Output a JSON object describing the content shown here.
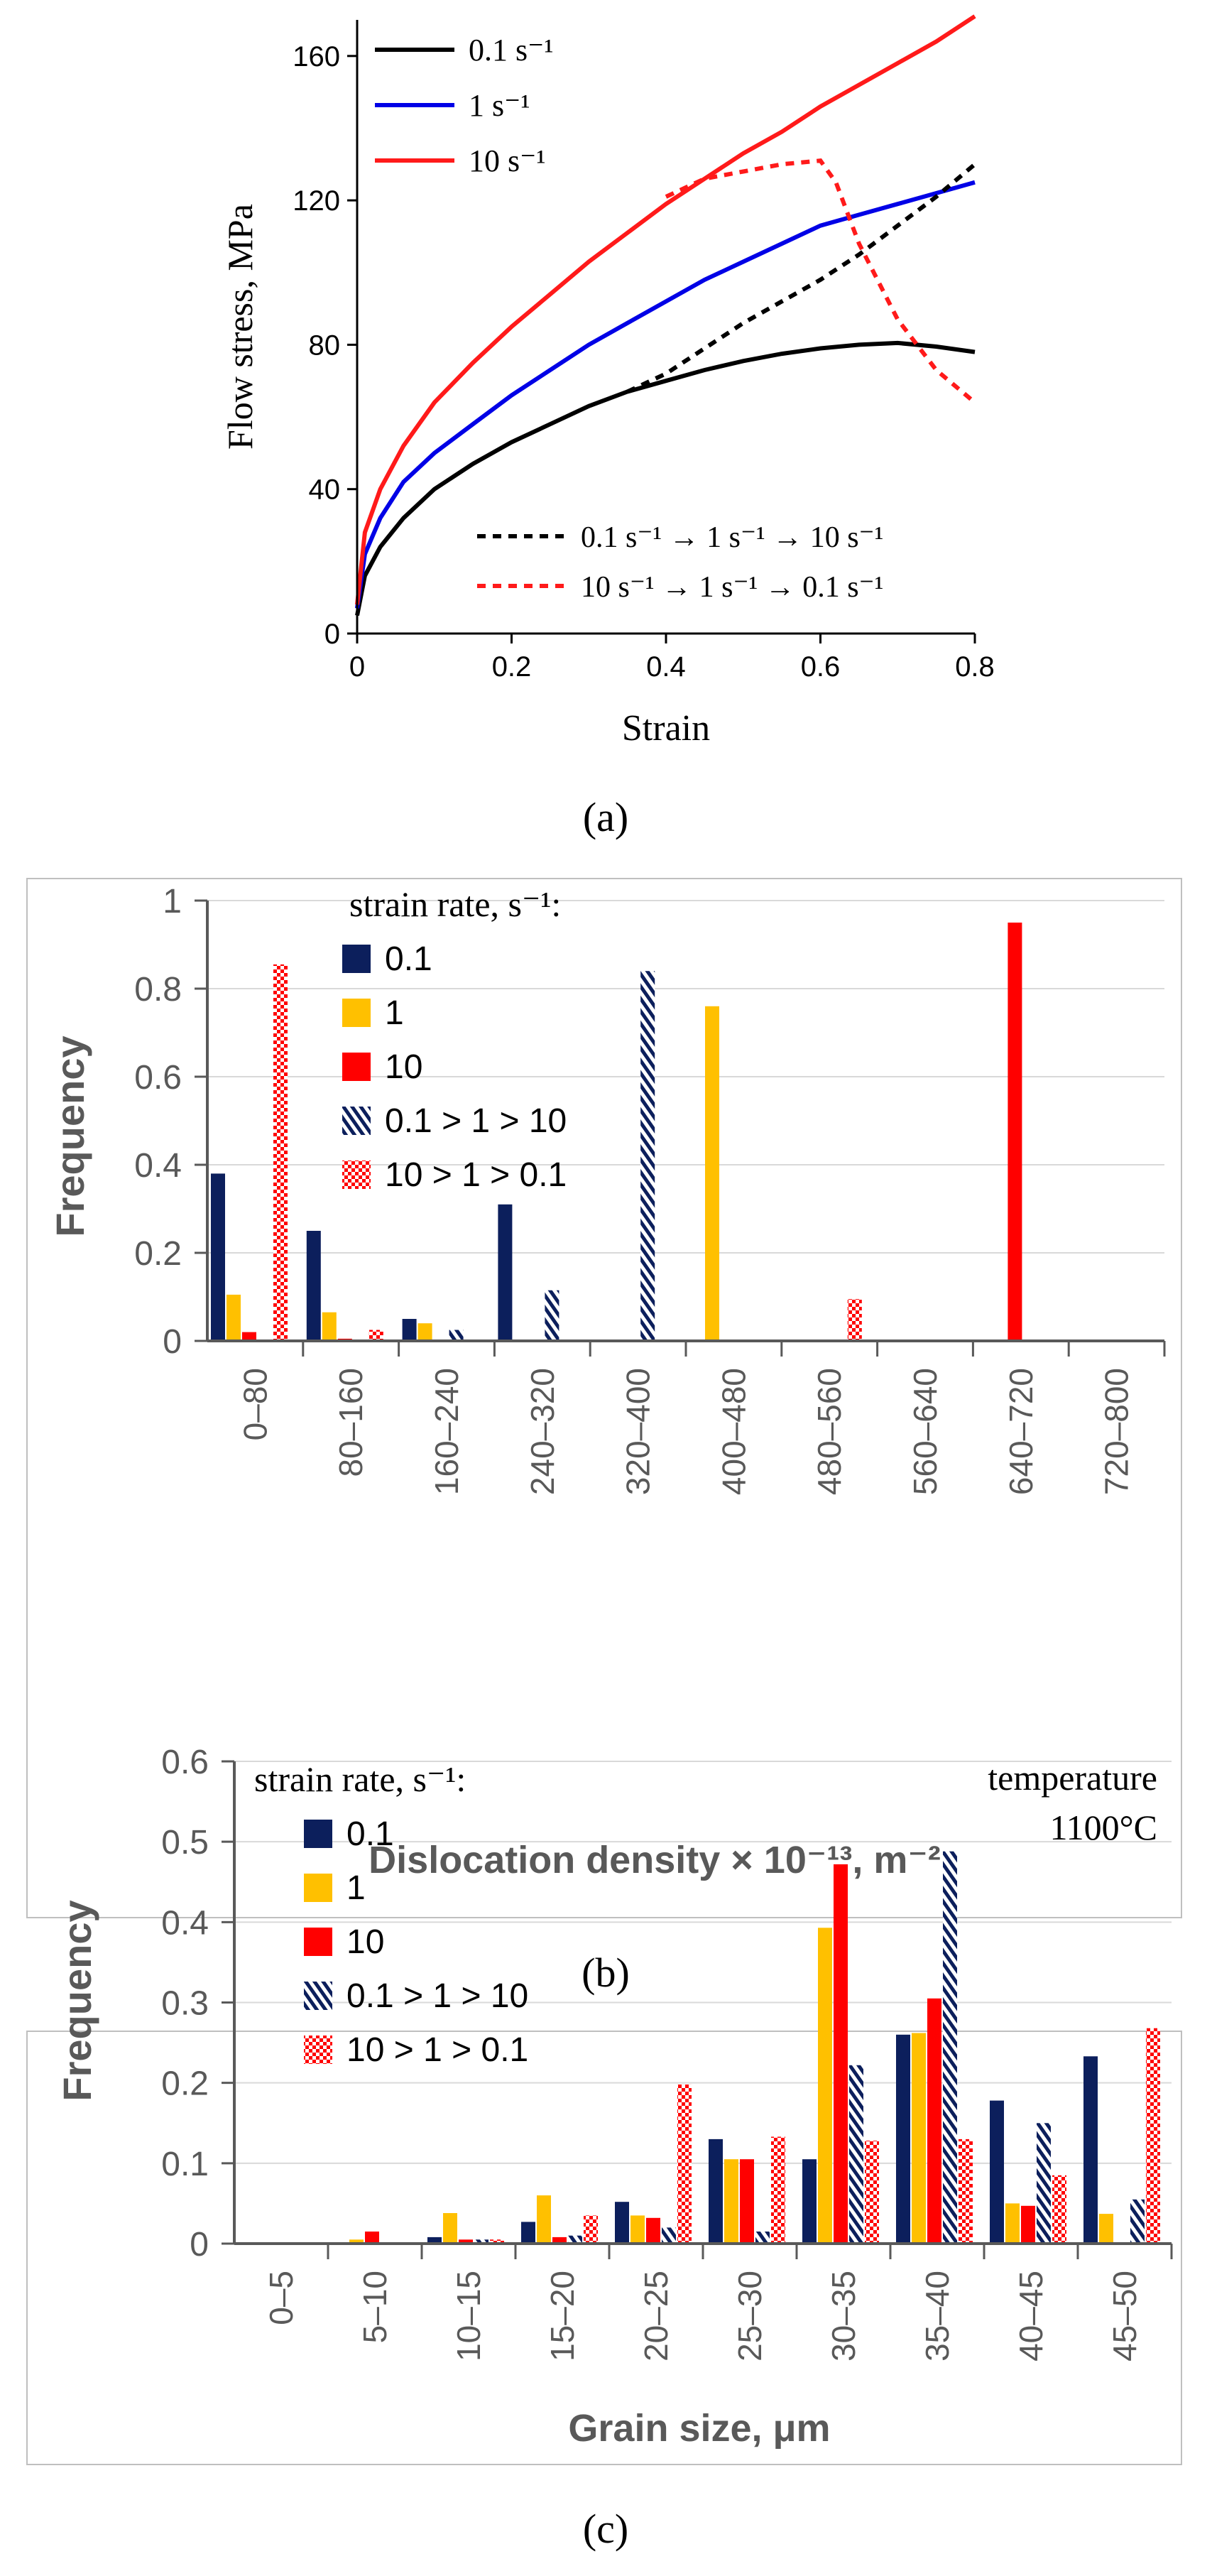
{
  "panel_labels": {
    "a": "(a)",
    "b": "(b)",
    "c": "(c)"
  },
  "colors": {
    "black": "#000000",
    "blue": "#0000e6",
    "red": "#ff1a1a",
    "navy": "#0c1f5c",
    "gold": "#ffc000",
    "bred": "#ff0000",
    "grid": "#d9d9d9",
    "tick": "#595959",
    "frame": "#bfbfbf"
  },
  "chart_data": [
    {
      "id": "a",
      "type": "line",
      "xlabel": "Strain",
      "ylabel": "Flow stress, MPa",
      "xlim": [
        0,
        0.8
      ],
      "ylim": [
        0,
        170
      ],
      "xticks": [
        "0",
        "0.2",
        "0.4",
        "0.6",
        "0.8"
      ],
      "yticks": [
        "0",
        "40",
        "80",
        "120",
        "160"
      ],
      "series": [
        {
          "name": "0.1 s⁻¹",
          "color": "#000000",
          "dash": false,
          "x": [
            0,
            0.01,
            0.03,
            0.06,
            0.1,
            0.15,
            0.2,
            0.25,
            0.3,
            0.35,
            0.4,
            0.45,
            0.5,
            0.55,
            0.6,
            0.65,
            0.7,
            0.75,
            0.8
          ],
          "y": [
            5,
            16,
            24,
            32,
            40,
            47,
            53,
            58,
            63,
            67,
            70,
            73,
            75.5,
            77.5,
            79,
            80,
            80.5,
            79.5,
            78
          ]
        },
        {
          "name": "1 s⁻¹",
          "color": "#0000e6",
          "dash": false,
          "x": [
            0,
            0.01,
            0.03,
            0.06,
            0.1,
            0.15,
            0.2,
            0.25,
            0.3,
            0.35,
            0.4,
            0.45,
            0.5,
            0.55,
            0.6,
            0.65,
            0.7,
            0.75,
            0.8
          ],
          "y": [
            7,
            22,
            32,
            42,
            50,
            58,
            66,
            73,
            80,
            86,
            92,
            98,
            103,
            108,
            113,
            116,
            119,
            122,
            125
          ]
        },
        {
          "name": "10 s⁻¹",
          "color": "#ff1a1a",
          "dash": false,
          "x": [
            0,
            0.01,
            0.03,
            0.06,
            0.1,
            0.15,
            0.2,
            0.25,
            0.3,
            0.35,
            0.4,
            0.45,
            0.5,
            0.55,
            0.6,
            0.65,
            0.7,
            0.75,
            0.8
          ],
          "y": [
            8,
            28,
            40,
            52,
            64,
            75,
            85,
            94,
            103,
            111,
            119,
            126,
            133,
            139,
            146,
            152,
            158,
            164,
            171
          ]
        },
        {
          "name": "0.1 s⁻¹ → 1 s⁻¹ → 10 s⁻¹",
          "color": "#000000",
          "dash": true,
          "x": [
            0.35,
            0.4,
            0.45,
            0.5,
            0.55,
            0.6,
            0.65,
            0.7,
            0.75,
            0.8
          ],
          "y": [
            67,
            72,
            79,
            86,
            92,
            98,
            105,
            113,
            121,
            130
          ]
        },
        {
          "name": "10 s⁻¹ → 1 s⁻¹ → 0.1 s⁻¹",
          "color": "#ff1a1a",
          "dash": true,
          "x": [
            0.4,
            0.45,
            0.5,
            0.55,
            0.6,
            0.62,
            0.65,
            0.7,
            0.75,
            0.8
          ],
          "y": [
            121,
            126,
            128,
            130,
            131,
            125,
            108,
            87,
            73,
            64
          ]
        }
      ]
    },
    {
      "id": "b",
      "type": "bar",
      "xlabel": "Dislocation density × 10⁻¹³, m⁻²",
      "ylabel": "Frequency",
      "ylim": [
        0,
        1
      ],
      "yticks": [
        "0",
        "0.2",
        "0.4",
        "0.6",
        "0.8",
        "1"
      ],
      "legend_title": "strain rate, s⁻¹:",
      "categories": [
        "0–80",
        "80–160",
        "160–240",
        "240–320",
        "320–400",
        "400–480",
        "480–560",
        "560–640",
        "640–720",
        "720–800"
      ],
      "series": [
        {
          "name": "0.1",
          "style": "navy",
          "values": [
            0.38,
            0.25,
            0.05,
            0.31,
            0,
            0,
            0,
            0,
            0,
            0
          ]
        },
        {
          "name": "1",
          "style": "gold",
          "values": [
            0.105,
            0.065,
            0.04,
            0,
            0,
            0.76,
            0,
            0,
            0,
            0
          ]
        },
        {
          "name": "10",
          "style": "red",
          "values": [
            0.02,
            0.005,
            0,
            0,
            0,
            0,
            0,
            0,
            0.95,
            0
          ]
        },
        {
          "name": "0.1 > 1 > 10",
          "style": "hatch",
          "values": [
            0,
            0,
            0.025,
            0.115,
            0.84,
            0,
            0,
            0,
            0,
            0
          ]
        },
        {
          "name": "10 > 1 > 0.1",
          "style": "check",
          "values": [
            0.855,
            0.025,
            0,
            0,
            0,
            0,
            0.095,
            0,
            0,
            0
          ]
        }
      ]
    },
    {
      "id": "c",
      "type": "bar",
      "xlabel": "Grain size, μm",
      "ylabel": "Frequency",
      "ylim": [
        0,
        0.6
      ],
      "yticks": [
        "0",
        "0.1",
        "0.2",
        "0.3",
        "0.4",
        "0.5",
        "0.6"
      ],
      "legend_title": "strain rate, s⁻¹:",
      "annotation": [
        "temperature",
        "1100°C"
      ],
      "categories": [
        "0–5",
        "5–10",
        "10–15",
        "15–20",
        "20–25",
        "25–30",
        "30–35",
        "35–40",
        "40–45",
        "45–50"
      ],
      "series": [
        {
          "name": "0.1",
          "style": "navy",
          "values": [
            0,
            0,
            0.008,
            0.027,
            0.052,
            0.13,
            0.105,
            0.26,
            0.178,
            0.233
          ]
        },
        {
          "name": "1",
          "style": "gold",
          "values": [
            0,
            0.005,
            0.038,
            0.06,
            0.035,
            0.105,
            0.393,
            0.262,
            0.05,
            0.037
          ]
        },
        {
          "name": "10",
          "style": "red",
          "values": [
            0,
            0.015,
            0.005,
            0.008,
            0.032,
            0.105,
            0.472,
            0.305,
            0.047,
            0
          ]
        },
        {
          "name": "0.1 > 1 > 10",
          "style": "hatch",
          "values": [
            0,
            0,
            0.005,
            0.01,
            0.02,
            0.015,
            0.222,
            0.488,
            0.15,
            0.055
          ]
        },
        {
          "name": "10 > 1 > 0.1",
          "style": "check",
          "values": [
            0,
            0,
            0.005,
            0.035,
            0.198,
            0.133,
            0.128,
            0.13,
            0.085,
            0.268
          ]
        }
      ]
    }
  ]
}
